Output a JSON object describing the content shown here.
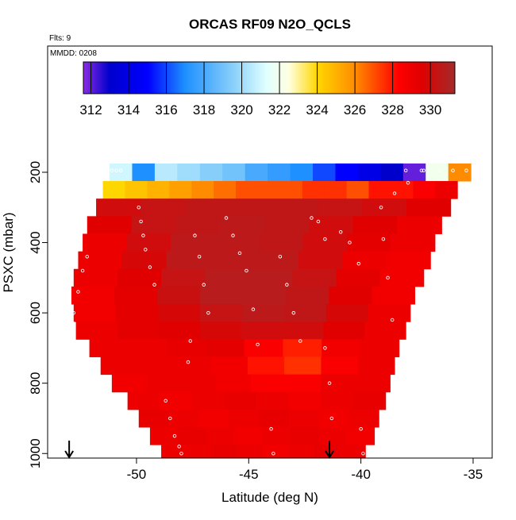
{
  "chart_data": {
    "type": "heatmap",
    "title": "ORCAS RF09 N2O_QCLS",
    "subtitle": "Flts: 9",
    "annotation": "MMDD: 0208",
    "x_label": "Latitude (deg N)",
    "y_label": "PSXC (mbar)",
    "xlim": [
      -53.96,
      -34.15
    ],
    "xticks": [
      -50,
      -45,
      -40,
      -35
    ],
    "ylim": [
      -159,
      1013
    ],
    "yticks": [
      200,
      400,
      600,
      800,
      1000
    ],
    "colorbar_lim": [
      311.6,
      331.3
    ],
    "colorbar_ticks": [
      312,
      314,
      316,
      318,
      320,
      322,
      324,
      326,
      328,
      330
    ],
    "colormap": [
      {
        "value": 311.6,
        "color": "#8a2be2"
      },
      {
        "value": 313,
        "color": "#0000cd"
      },
      {
        "value": 315,
        "color": "#0000ff"
      },
      {
        "value": 317,
        "color": "#1e90ff"
      },
      {
        "value": 319.5,
        "color": "#87cefa"
      },
      {
        "value": 321.3,
        "color": "#e0ffff"
      },
      {
        "value": 322.5,
        "color": "#ffffe0"
      },
      {
        "value": 324,
        "color": "#ffd700"
      },
      {
        "value": 326,
        "color": "#ff8c00"
      },
      {
        "value": 328.3,
        "color": "#ff0000"
      },
      {
        "value": 329.5,
        "color": "#e00000"
      },
      {
        "value": 331.3,
        "color": "#a52a2a"
      }
    ],
    "rows": [
      {
        "p": [
          175,
          225
        ],
        "lat": [
          -51.2,
          -35.1
        ],
        "values": [
          321,
          317,
          320.5,
          320,
          319.5,
          319,
          318,
          317.5,
          317,
          316,
          315,
          314,
          313,
          312,
          322,
          326
        ]
      },
      {
        "p": [
          225,
          275
        ],
        "lat": [
          -51.5,
          -35.7
        ],
        "values": [
          324,
          324.5,
          325,
          325.5,
          326,
          326.5,
          327,
          327,
          327,
          327.5,
          327.5,
          327,
          328,
          328,
          328.5,
          329
        ]
      },
      {
        "p": [
          275,
          325
        ],
        "lat": [
          -51.8,
          -36.0
        ],
        "values": [
          330,
          330.3,
          330.5,
          330.5,
          330.5,
          330.3,
          330,
          329.5
        ]
      },
      {
        "p": [
          325,
          375
        ],
        "lat": [
          -52.2,
          -36.4
        ],
        "values": [
          329.5,
          330.3,
          330.5,
          330.6,
          330.5,
          330,
          329.5,
          329
        ]
      },
      {
        "p": [
          375,
          425
        ],
        "lat": [
          -52.4,
          -36.7
        ],
        "values": [
          329,
          330,
          330.6,
          330.6,
          330.5,
          330,
          329.3,
          329
        ]
      },
      {
        "p": [
          425,
          475
        ],
        "lat": [
          -52.6,
          -36.9
        ],
        "values": [
          329,
          329.8,
          330.6,
          330.6,
          330.6,
          330,
          329,
          328.8
        ]
      },
      {
        "p": [
          475,
          525
        ],
        "lat": [
          -52.8,
          -37.2
        ],
        "values": [
          329,
          329.5,
          330.3,
          330.7,
          330.7,
          330.3,
          329.3,
          328.8
        ]
      },
      {
        "p": [
          525,
          575
        ],
        "lat": [
          -52.9,
          -37.6
        ],
        "values": [
          328.8,
          329.3,
          330.2,
          330.7,
          330.7,
          330.5,
          329.5,
          328.8
        ]
      },
      {
        "p": [
          575,
          625
        ],
        "lat": [
          -52.8,
          -37.8
        ],
        "values": [
          328.8,
          329.3,
          329.8,
          330.3,
          330.6,
          330.5,
          329.8,
          329
        ]
      },
      {
        "p": [
          625,
          675
        ],
        "lat": [
          -52.7,
          -38.0
        ],
        "values": [
          329,
          329.3,
          329.5,
          329.8,
          330,
          330,
          329.5,
          329
        ]
      },
      {
        "p": [
          675,
          725
        ],
        "lat": [
          -52.1,
          -38.3
        ],
        "values": [
          329,
          329,
          329.2,
          329.3,
          328.5,
          327.8,
          328.8,
          329
        ]
      },
      {
        "p": [
          725,
          775
        ],
        "lat": [
          -51.6,
          -38.5
        ],
        "values": [
          329,
          329,
          329,
          328.8,
          328,
          327.5,
          328.5,
          329
        ]
      },
      {
        "p": [
          775,
          825
        ],
        "lat": [
          -51.1,
          -38.7
        ],
        "values": [
          328.8,
          329,
          329,
          328.8,
          328.5,
          328.5,
          329,
          329
        ]
      },
      {
        "p": [
          825,
          875
        ],
        "lat": [
          -50.4,
          -38.9
        ],
        "values": [
          329,
          328.8,
          329,
          329.2,
          329,
          328.8,
          329,
          329.2
        ]
      },
      {
        "p": [
          875,
          925
        ],
        "lat": [
          -49.9,
          -39.2
        ],
        "values": [
          329.2,
          329,
          328.8,
          329,
          329.2,
          329,
          328.8,
          329
        ]
      },
      {
        "p": [
          925,
          975
        ],
        "lat": [
          -49.4,
          -39.4
        ],
        "values": [
          329,
          329.2,
          329,
          328.8,
          329,
          329.2,
          329,
          328.8
        ]
      },
      {
        "p": [
          975,
          1013
        ],
        "lat": [
          -48.9,
          -39.8
        ],
        "values": [
          329,
          329,
          329.2,
          329,
          328.8,
          329,
          329.2,
          329
        ]
      }
    ],
    "track": {
      "lat": [
        -51.1,
        -50.9,
        -50.7,
        -52.2,
        -52.4,
        -52.6,
        -52.8,
        -52.8,
        -49.9,
        -49.8,
        -49.7,
        -49.6,
        -49.4,
        -49.2,
        -48.7,
        -48.5,
        -48.3,
        -48.1,
        -48.0,
        -47.4,
        -47.2,
        -47.0,
        -46.8,
        -47.6,
        -47.7,
        -46.0,
        -45.7,
        -45.4,
        -45.1,
        -44.8,
        -44.6,
        -44.0,
        -43.9,
        -43.6,
        -43.3,
        -43.0,
        -42.7,
        -42.2,
        -41.9,
        -41.6,
        -41.6,
        -41.4,
        -41.3,
        -40.9,
        -40.5,
        -40.1,
        -40.0,
        -39.9,
        -39.0,
        -38.8,
        -38.6,
        -38.4,
        -39.1,
        -38.5,
        -37.9,
        -37.3,
        -38.0,
        -37.2,
        -36.5,
        -35.9,
        -35.3
      ],
      "pressure": [
        195,
        195,
        195,
        440,
        480,
        540,
        600,
        630,
        300,
        340,
        380,
        420,
        470,
        520,
        850,
        900,
        950,
        980,
        1000,
        380,
        440,
        520,
        600,
        680,
        740,
        330,
        380,
        430,
        480,
        590,
        690,
        930,
        1000,
        440,
        520,
        600,
        680,
        330,
        340,
        390,
        700,
        800,
        900,
        370,
        400,
        460,
        930,
        1000,
        390,
        500,
        620,
        750,
        300,
        260,
        230,
        195,
        195,
        195,
        195,
        195,
        195
      ]
    },
    "arrows_lat": [
      -53,
      -41.4
    ]
  }
}
